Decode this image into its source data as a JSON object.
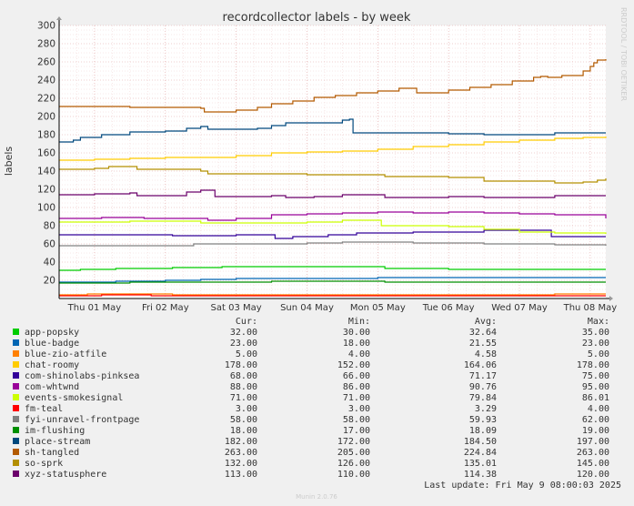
{
  "title": "recordcollector labels - by week",
  "side_label": "RRDTOOL / TOBI OETIKER",
  "footer": "Munin 2.0.76",
  "last_update": "Last update: Fri May  9 08:00:03 2025",
  "legend_headers": {
    "cur": "Cur:",
    "min": "Min:",
    "avg": "Avg:",
    "max": "Max:"
  },
  "chart_data": {
    "type": "line",
    "ylabel": "labels",
    "ylim": [
      0,
      300
    ],
    "yticks": [
      20,
      40,
      60,
      80,
      100,
      120,
      140,
      160,
      180,
      200,
      220,
      240,
      260,
      280,
      300
    ],
    "xlim": [
      0,
      7.72
    ],
    "xticks": [
      {
        "label": "Thu 01 May",
        "x": 0.5
      },
      {
        "label": "Fri 02 May",
        "x": 1.5
      },
      {
        "label": "Sat 03 May",
        "x": 2.5
      },
      {
        "label": "Sun 04 May",
        "x": 3.5
      },
      {
        "label": "Mon 05 May",
        "x": 4.5
      },
      {
        "label": "Tue 06 May",
        "x": 5.5
      },
      {
        "label": "Wed 07 May",
        "x": 6.5
      },
      {
        "label": "Thu 08 May",
        "x": 7.5
      }
    ],
    "grid": true,
    "series": [
      {
        "name": "app-popsky",
        "color": "#00cc00",
        "cur": "32.00",
        "min": "30.00",
        "avg": "32.64",
        "max": "35.00",
        "points": [
          [
            0,
            31
          ],
          [
            0.3,
            32
          ],
          [
            0.8,
            33
          ],
          [
            1.2,
            33
          ],
          [
            1.6,
            34
          ],
          [
            2.0,
            34
          ],
          [
            2.3,
            35
          ],
          [
            4.5,
            35
          ],
          [
            4.6,
            33
          ],
          [
            5.2,
            33
          ],
          [
            5.5,
            32
          ],
          [
            7.72,
            32
          ]
        ]
      },
      {
        "name": "blue-badge",
        "color": "#0066b3",
        "cur": "23.00",
        "min": "18.00",
        "avg": "21.55",
        "max": "23.00",
        "points": [
          [
            0,
            18
          ],
          [
            0.8,
            19
          ],
          [
            1.5,
            20
          ],
          [
            2.0,
            21
          ],
          [
            2.5,
            22
          ],
          [
            4.5,
            23
          ],
          [
            7.72,
            23
          ]
        ]
      },
      {
        "name": "blue-zio-atfile",
        "color": "#ff8000",
        "cur": "5.00",
        "min": "4.00",
        "avg": "4.58",
        "max": "5.00",
        "points": [
          [
            0,
            4
          ],
          [
            0.4,
            5
          ],
          [
            1.5,
            5
          ],
          [
            1.6,
            4
          ],
          [
            6.9,
            4
          ],
          [
            7.0,
            5
          ],
          [
            7.72,
            5
          ]
        ]
      },
      {
        "name": "chat-roomy",
        "color": "#ffcc00",
        "cur": "178.00",
        "min": "152.00",
        "avg": "164.06",
        "max": "178.00",
        "points": [
          [
            0,
            152
          ],
          [
            0.5,
            153
          ],
          [
            1.0,
            154
          ],
          [
            1.5,
            155
          ],
          [
            2.0,
            155
          ],
          [
            2.5,
            157
          ],
          [
            3.0,
            160
          ],
          [
            3.5,
            161
          ],
          [
            4.0,
            162
          ],
          [
            4.5,
            164
          ],
          [
            5.0,
            167
          ],
          [
            5.5,
            169
          ],
          [
            6.0,
            172
          ],
          [
            6.5,
            174
          ],
          [
            7.0,
            176
          ],
          [
            7.4,
            177
          ],
          [
            7.72,
            178
          ]
        ]
      },
      {
        "name": "com-shinolabs-pinksea",
        "color": "#330099",
        "cur": "68.00",
        "min": "66.00",
        "avg": "71.17",
        "max": "75.00",
        "points": [
          [
            0,
            70
          ],
          [
            1.0,
            70
          ],
          [
            1.6,
            69
          ],
          [
            2.5,
            70
          ],
          [
            3.0,
            70
          ],
          [
            3.05,
            66
          ],
          [
            3.3,
            68
          ],
          [
            3.8,
            70
          ],
          [
            4.2,
            72
          ],
          [
            5.0,
            73
          ],
          [
            6.0,
            75
          ],
          [
            6.9,
            75
          ],
          [
            6.95,
            68
          ],
          [
            7.72,
            68
          ]
        ]
      },
      {
        "name": "com-whtwnd",
        "color": "#990099",
        "cur": "88.00",
        "min": "86.00",
        "avg": "90.76",
        "max": "95.00",
        "points": [
          [
            0,
            88
          ],
          [
            0.6,
            89
          ],
          [
            1.2,
            88
          ],
          [
            2.0,
            88
          ],
          [
            2.1,
            86
          ],
          [
            2.5,
            88
          ],
          [
            3.0,
            92
          ],
          [
            3.5,
            93
          ],
          [
            4.0,
            94
          ],
          [
            4.5,
            95
          ],
          [
            5.0,
            94
          ],
          [
            5.5,
            95
          ],
          [
            6.0,
            94
          ],
          [
            6.5,
            93
          ],
          [
            7.0,
            92
          ],
          [
            7.72,
            88
          ]
        ]
      },
      {
        "name": "events-smokesignal",
        "color": "#ccff00",
        "cur": "71.00",
        "min": "71.00",
        "avg": "79.84",
        "max": "86.01",
        "points": [
          [
            0,
            84
          ],
          [
            1.0,
            85
          ],
          [
            1.5,
            85
          ],
          [
            2.0,
            83
          ],
          [
            3.5,
            84
          ],
          [
            4.0,
            86
          ],
          [
            4.5,
            86
          ],
          [
            4.55,
            80
          ],
          [
            5.5,
            79
          ],
          [
            6.0,
            76
          ],
          [
            6.5,
            73
          ],
          [
            7.0,
            72
          ],
          [
            7.72,
            71
          ]
        ]
      },
      {
        "name": "fm-teal",
        "color": "#ff0000",
        "cur": "3.00",
        "min": "3.00",
        "avg": "3.29",
        "max": "4.00",
        "points": [
          [
            0,
            3
          ],
          [
            0.6,
            4
          ],
          [
            1.2,
            4
          ],
          [
            1.3,
            3
          ],
          [
            7.72,
            3
          ]
        ]
      },
      {
        "name": "fyi-unravel-frontpage",
        "color": "#808080",
        "cur": "58.00",
        "min": "58.00",
        "avg": "59.93",
        "max": "62.00",
        "points": [
          [
            0,
            58
          ],
          [
            1.5,
            58
          ],
          [
            1.9,
            60
          ],
          [
            2.5,
            60
          ],
          [
            3.5,
            61
          ],
          [
            4.0,
            62
          ],
          [
            4.5,
            62
          ],
          [
            5.0,
            61
          ],
          [
            6.0,
            60
          ],
          [
            7.0,
            59
          ],
          [
            7.72,
            58
          ]
        ]
      },
      {
        "name": "im-flushing",
        "color": "#008f00",
        "cur": "18.00",
        "min": "17.00",
        "avg": "18.09",
        "max": "19.00",
        "points": [
          [
            0,
            17
          ],
          [
            1.0,
            18
          ],
          [
            2.0,
            18
          ],
          [
            3.0,
            19
          ],
          [
            4.5,
            19
          ],
          [
            4.6,
            18
          ],
          [
            7.72,
            18
          ]
        ]
      },
      {
        "name": "place-stream",
        "color": "#00487d",
        "cur": "182.00",
        "min": "172.00",
        "avg": "184.50",
        "max": "197.00",
        "points": [
          [
            0,
            172
          ],
          [
            0.2,
            174
          ],
          [
            0.3,
            177
          ],
          [
            0.6,
            180
          ],
          [
            1.0,
            183
          ],
          [
            1.5,
            184
          ],
          [
            1.8,
            187
          ],
          [
            2.0,
            189
          ],
          [
            2.1,
            186
          ],
          [
            2.8,
            187
          ],
          [
            3.0,
            190
          ],
          [
            3.2,
            193
          ],
          [
            3.6,
            193
          ],
          [
            4.0,
            196
          ],
          [
            4.1,
            197
          ],
          [
            4.15,
            182
          ],
          [
            5.0,
            182
          ],
          [
            5.5,
            181
          ],
          [
            6.0,
            180
          ],
          [
            7.0,
            182
          ],
          [
            7.72,
            182
          ]
        ]
      },
      {
        "name": "sh-tangled",
        "color": "#b35a00",
        "cur": "263.00",
        "min": "205.00",
        "avg": "224.84",
        "max": "263.00",
        "points": [
          [
            0,
            211
          ],
          [
            0.5,
            211
          ],
          [
            1.0,
            210
          ],
          [
            1.5,
            210
          ],
          [
            2.0,
            209
          ],
          [
            2.05,
            205
          ],
          [
            2.5,
            207
          ],
          [
            2.8,
            210
          ],
          [
            3.0,
            214
          ],
          [
            3.3,
            217
          ],
          [
            3.6,
            221
          ],
          [
            3.9,
            223
          ],
          [
            4.2,
            226
          ],
          [
            4.5,
            228
          ],
          [
            4.8,
            231
          ],
          [
            5.0,
            231
          ],
          [
            5.05,
            226
          ],
          [
            5.5,
            229
          ],
          [
            5.8,
            232
          ],
          [
            6.0,
            232
          ],
          [
            6.1,
            235
          ],
          [
            6.4,
            239
          ],
          [
            6.7,
            243
          ],
          [
            6.8,
            244
          ],
          [
            6.9,
            243
          ],
          [
            7.1,
            245
          ],
          [
            7.4,
            250
          ],
          [
            7.5,
            255
          ],
          [
            7.55,
            259
          ],
          [
            7.6,
            262
          ],
          [
            7.72,
            263
          ]
        ]
      },
      {
        "name": "so-sprk",
        "color": "#b38f00",
        "cur": "132.00",
        "min": "126.00",
        "avg": "135.01",
        "max": "145.00",
        "points": [
          [
            0,
            142
          ],
          [
            0.5,
            143
          ],
          [
            0.7,
            145
          ],
          [
            1.0,
            145
          ],
          [
            1.1,
            142
          ],
          [
            1.5,
            142
          ],
          [
            2.0,
            140
          ],
          [
            2.1,
            137
          ],
          [
            3.0,
            137
          ],
          [
            3.5,
            136
          ],
          [
            4.5,
            136
          ],
          [
            4.6,
            134
          ],
          [
            5.5,
            133
          ],
          [
            6.0,
            129
          ],
          [
            7.0,
            127
          ],
          [
            7.4,
            128
          ],
          [
            7.6,
            130
          ],
          [
            7.72,
            132
          ]
        ]
      },
      {
        "name": "xyz-statusphere",
        "color": "#6b006b",
        "cur": "113.00",
        "min": "110.00",
        "avg": "114.38",
        "max": "120.00",
        "points": [
          [
            0,
            114
          ],
          [
            0.5,
            115
          ],
          [
            1.0,
            116
          ],
          [
            1.1,
            113
          ],
          [
            1.5,
            113
          ],
          [
            1.8,
            117
          ],
          [
            2.0,
            119
          ],
          [
            2.2,
            112
          ],
          [
            3.0,
            113
          ],
          [
            3.2,
            111
          ],
          [
            3.6,
            112
          ],
          [
            4.0,
            114
          ],
          [
            4.5,
            114
          ],
          [
            4.6,
            111
          ],
          [
            5.5,
            112
          ],
          [
            6.0,
            111
          ],
          [
            7.0,
            113
          ],
          [
            7.72,
            113
          ]
        ]
      }
    ]
  }
}
